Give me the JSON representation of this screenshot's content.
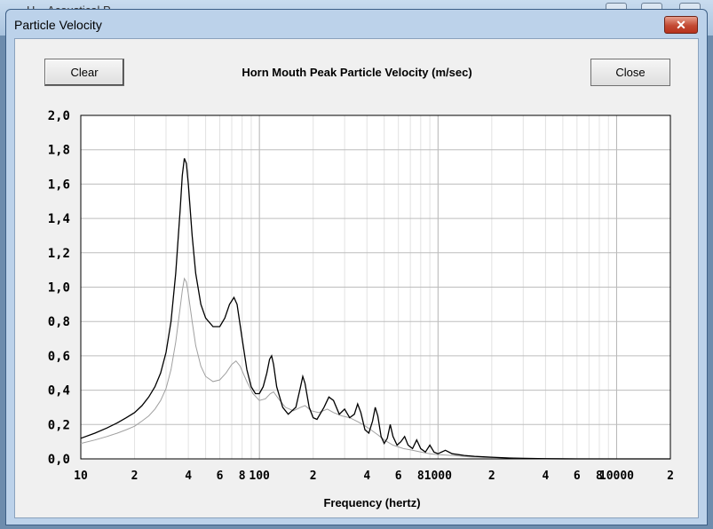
{
  "background_window": {
    "title": "H... Acoustical P..."
  },
  "dialog": {
    "title": "Particle Velocity",
    "close_glyph": "✕",
    "clear_label": "Clear",
    "close_label": "Close"
  },
  "chart_data": {
    "type": "line",
    "title": "Horn Mouth Peak Particle Velocity (m/sec)",
    "xlabel": "Frequency (hertz)",
    "ylabel": "",
    "x_scale": "log",
    "xlim": [
      10,
      20000
    ],
    "ylim": [
      0,
      2.0
    ],
    "grid": true,
    "x_tick_labels": [
      {
        "x": 10,
        "label": "10"
      },
      {
        "x": 20,
        "label": "2"
      },
      {
        "x": 40,
        "label": "4"
      },
      {
        "x": 60,
        "label": "6"
      },
      {
        "x": 80,
        "label": "8"
      },
      {
        "x": 100,
        "label": "100"
      },
      {
        "x": 200,
        "label": "2"
      },
      {
        "x": 400,
        "label": "4"
      },
      {
        "x": 600,
        "label": "6"
      },
      {
        "x": 800,
        "label": "8"
      },
      {
        "x": 1000,
        "label": "1000"
      },
      {
        "x": 2000,
        "label": "2"
      },
      {
        "x": 4000,
        "label": "4"
      },
      {
        "x": 6000,
        "label": "6"
      },
      {
        "x": 8000,
        "label": "8"
      },
      {
        "x": 10000,
        "label": "10000"
      },
      {
        "x": 20000,
        "label": "2"
      }
    ],
    "y_tick_labels": [
      {
        "y": 0.0,
        "label": "0,0"
      },
      {
        "y": 0.2,
        "label": "0,2"
      },
      {
        "y": 0.4,
        "label": "0,4"
      },
      {
        "y": 0.6,
        "label": "0,6"
      },
      {
        "y": 0.8,
        "label": "0,8"
      },
      {
        "y": 1.0,
        "label": "1,0"
      },
      {
        "y": 1.2,
        "label": "1,2"
      },
      {
        "y": 1.4,
        "label": "1,4"
      },
      {
        "y": 1.6,
        "label": "1,6"
      },
      {
        "y": 1.8,
        "label": "1,8"
      },
      {
        "y": 2.0,
        "label": "2,0"
      }
    ],
    "series": [
      {
        "color": "#000000",
        "points": [
          [
            10,
            0.12
          ],
          [
            12,
            0.15
          ],
          [
            14,
            0.18
          ],
          [
            16,
            0.21
          ],
          [
            18,
            0.24
          ],
          [
            20,
            0.27
          ],
          [
            22,
            0.31
          ],
          [
            24,
            0.36
          ],
          [
            26,
            0.42
          ],
          [
            28,
            0.5
          ],
          [
            30,
            0.62
          ],
          [
            32,
            0.8
          ],
          [
            34,
            1.08
          ],
          [
            36,
            1.45
          ],
          [
            37,
            1.65
          ],
          [
            38,
            1.75
          ],
          [
            39,
            1.72
          ],
          [
            40,
            1.6
          ],
          [
            42,
            1.3
          ],
          [
            44,
            1.08
          ],
          [
            47,
            0.9
          ],
          [
            50,
            0.82
          ],
          [
            55,
            0.77
          ],
          [
            60,
            0.77
          ],
          [
            64,
            0.82
          ],
          [
            68,
            0.9
          ],
          [
            72,
            0.94
          ],
          [
            75,
            0.9
          ],
          [
            80,
            0.7
          ],
          [
            85,
            0.52
          ],
          [
            90,
            0.42
          ],
          [
            95,
            0.38
          ],
          [
            100,
            0.38
          ],
          [
            105,
            0.42
          ],
          [
            110,
            0.5
          ],
          [
            114,
            0.58
          ],
          [
            117,
            0.6
          ],
          [
            120,
            0.55
          ],
          [
            125,
            0.42
          ],
          [
            135,
            0.3
          ],
          [
            145,
            0.26
          ],
          [
            160,
            0.3
          ],
          [
            170,
            0.42
          ],
          [
            175,
            0.48
          ],
          [
            180,
            0.44
          ],
          [
            190,
            0.3
          ],
          [
            200,
            0.24
          ],
          [
            210,
            0.23
          ],
          [
            230,
            0.3
          ],
          [
            245,
            0.36
          ],
          [
            260,
            0.34
          ],
          [
            280,
            0.26
          ],
          [
            300,
            0.29
          ],
          [
            320,
            0.24
          ],
          [
            340,
            0.26
          ],
          [
            355,
            0.32
          ],
          [
            370,
            0.27
          ],
          [
            390,
            0.17
          ],
          [
            410,
            0.15
          ],
          [
            430,
            0.22
          ],
          [
            445,
            0.3
          ],
          [
            460,
            0.25
          ],
          [
            480,
            0.13
          ],
          [
            500,
            0.09
          ],
          [
            520,
            0.12
          ],
          [
            540,
            0.2
          ],
          [
            560,
            0.13
          ],
          [
            590,
            0.08
          ],
          [
            620,
            0.1
          ],
          [
            650,
            0.13
          ],
          [
            680,
            0.08
          ],
          [
            720,
            0.06
          ],
          [
            760,
            0.11
          ],
          [
            800,
            0.06
          ],
          [
            850,
            0.04
          ],
          [
            900,
            0.08
          ],
          [
            950,
            0.04
          ],
          [
            1000,
            0.03
          ],
          [
            1100,
            0.05
          ],
          [
            1200,
            0.03
          ],
          [
            1300,
            0.025
          ],
          [
            1400,
            0.02
          ],
          [
            1600,
            0.015
          ],
          [
            1800,
            0.012
          ],
          [
            2000,
            0.01
          ],
          [
            2500,
            0.005
          ],
          [
            3000,
            0.003
          ],
          [
            4000,
            0.001
          ],
          [
            6000,
            0
          ],
          [
            10000,
            0
          ],
          [
            20000,
            0
          ]
        ]
      },
      {
        "color": "#a0a0a0",
        "points": [
          [
            10,
            0.09
          ],
          [
            12,
            0.11
          ],
          [
            14,
            0.13
          ],
          [
            16,
            0.15
          ],
          [
            18,
            0.17
          ],
          [
            20,
            0.19
          ],
          [
            22,
            0.22
          ],
          [
            24,
            0.25
          ],
          [
            26,
            0.29
          ],
          [
            28,
            0.34
          ],
          [
            30,
            0.41
          ],
          [
            32,
            0.52
          ],
          [
            34,
            0.68
          ],
          [
            36,
            0.88
          ],
          [
            37,
            0.98
          ],
          [
            38,
            1.05
          ],
          [
            39,
            1.03
          ],
          [
            40,
            0.96
          ],
          [
            42,
            0.8
          ],
          [
            44,
            0.66
          ],
          [
            47,
            0.54
          ],
          [
            50,
            0.48
          ],
          [
            55,
            0.45
          ],
          [
            60,
            0.46
          ],
          [
            65,
            0.5
          ],
          [
            70,
            0.55
          ],
          [
            74,
            0.57
          ],
          [
            78,
            0.54
          ],
          [
            85,
            0.45
          ],
          [
            92,
            0.38
          ],
          [
            100,
            0.34
          ],
          [
            108,
            0.35
          ],
          [
            115,
            0.38
          ],
          [
            120,
            0.39
          ],
          [
            128,
            0.35
          ],
          [
            140,
            0.3
          ],
          [
            155,
            0.28
          ],
          [
            170,
            0.3
          ],
          [
            180,
            0.31
          ],
          [
            195,
            0.28
          ],
          [
            215,
            0.27
          ],
          [
            240,
            0.29
          ],
          [
            260,
            0.27
          ],
          [
            290,
            0.25
          ],
          [
            320,
            0.24
          ],
          [
            350,
            0.22
          ],
          [
            380,
            0.2
          ],
          [
            420,
            0.17
          ],
          [
            460,
            0.14
          ],
          [
            500,
            0.11
          ],
          [
            560,
            0.08
          ],
          [
            640,
            0.06
          ],
          [
            720,
            0.05
          ],
          [
            800,
            0.04
          ],
          [
            900,
            0.03
          ],
          [
            1000,
            0.025
          ],
          [
            1200,
            0.02
          ],
          [
            1500,
            0.012
          ],
          [
            2000,
            0.008
          ],
          [
            3000,
            0.003
          ],
          [
            5000,
            0.001
          ],
          [
            10000,
            0
          ],
          [
            20000,
            0
          ]
        ]
      }
    ]
  }
}
